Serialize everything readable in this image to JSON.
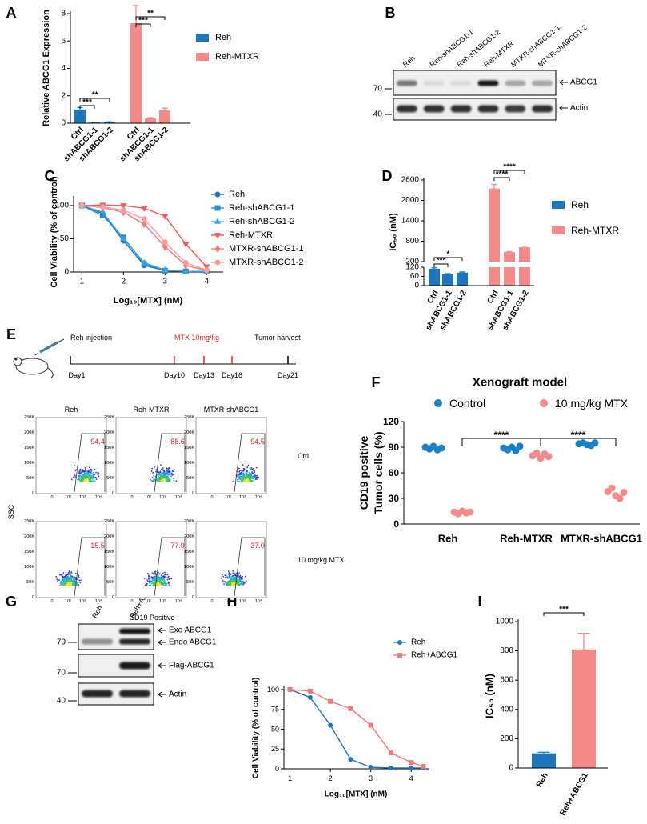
{
  "panel_labels": [
    "A",
    "B",
    "C",
    "D",
    "E",
    "F",
    "G",
    "H",
    "I"
  ],
  "chart_data": [
    {
      "type": "bar",
      "ylabel": "Relative ABCG1 Expression",
      "categories": [
        "Ctrl",
        "shABCG1-1",
        "shABCG1-2",
        "Ctrl",
        "shABCG1-1",
        "shABCG1-2"
      ],
      "series": [
        {
          "name": "Reh",
          "color": "#1d76bc",
          "values": [
            1.0,
            0.05,
            0.08,
            null,
            null,
            null
          ],
          "errors": [
            0.15,
            0.02,
            0.02,
            null,
            null,
            null
          ]
        },
        {
          "name": "Reh-MTXR",
          "color": "#f58a8a",
          "values": [
            null,
            null,
            null,
            7.3,
            0.35,
            0.95
          ],
          "errors": [
            null,
            null,
            null,
            1.3,
            0.06,
            0.15
          ]
        }
      ],
      "ylim": [
        0,
        8
      ],
      "yticks": [
        0,
        2,
        4,
        6,
        8
      ],
      "annotations": [
        "***",
        "**",
        "***",
        "**"
      ]
    },
    {
      "type": "line",
      "ylabel": "Cell Viability (% of control)",
      "xlabel": "Log₁₀[MTX] (nM)",
      "x": [
        1,
        1.5,
        2,
        2.5,
        3,
        3.5,
        4
      ],
      "xlim": [
        0.8,
        4.4
      ],
      "xticks": [
        1,
        2,
        3,
        4
      ],
      "ylim": [
        0,
        115
      ],
      "yticks": [
        0,
        50,
        100
      ],
      "series": [
        {
          "name": "Reh",
          "color": "#1f74c0",
          "marker": "circle",
          "values": [
            100,
            88,
            47,
            10,
            2,
            1,
            1
          ]
        },
        {
          "name": "Reh-shABCG1-1",
          "color": "#2a8ad6",
          "marker": "square",
          "values": [
            100,
            85,
            52,
            12,
            2,
            1,
            1
          ]
        },
        {
          "name": "Reh-shABCG1-2",
          "color": "#3aa0e0",
          "marker": "triangle-up",
          "values": [
            100,
            90,
            50,
            14,
            3,
            1,
            1
          ]
        },
        {
          "name": "Reh-MTXR",
          "color": "#ef5a5a",
          "marker": "triangle-down",
          "values": [
            100,
            101,
            100,
            96,
            84,
            42,
            8
          ]
        },
        {
          "name": "MTXR-shABCG1-1",
          "color": "#f27c7c",
          "marker": "diamond",
          "values": [
            100,
            97,
            90,
            72,
            38,
            10,
            2
          ]
        },
        {
          "name": "MTXR-shABCG1-2",
          "color": "#f5a0a0",
          "marker": "circle",
          "values": [
            100,
            98,
            93,
            80,
            45,
            14,
            3
          ]
        }
      ]
    },
    {
      "type": "bar",
      "ylabel": "IC₅₀ (nM)",
      "categories": [
        "Ctrl",
        "shABCG1-1",
        "shABCG1-2",
        "Ctrl",
        "shABCG1-1",
        "shABCG1-2"
      ],
      "series": [
        {
          "name": "Reh",
          "color": "#1d76bc",
          "values": [
            110,
            75,
            85,
            null,
            null,
            null
          ],
          "errors": [
            6,
            3,
            4,
            null,
            null,
            null
          ]
        },
        {
          "name": "Reh-MTXR",
          "color": "#f58a8a",
          "values": [
            null,
            null,
            null,
            2350,
            480,
            620
          ],
          "errors": [
            null,
            null,
            null,
            120,
            15,
            30
          ]
        }
      ],
      "ylim": [
        0,
        2600
      ],
      "yticks": [
        0,
        60,
        120,
        200,
        800,
        1400,
        2000,
        2600
      ],
      "axis_break": [
        120,
        200
      ],
      "annotations": [
        "***",
        "*",
        "****",
        "****"
      ]
    },
    {
      "type": "strip",
      "title": "Xenograft model",
      "ylabel": [
        "CD19 positive",
        "Tumor cells (%)"
      ],
      "categories": [
        "Reh",
        "Reh-MTXR",
        "MTXR-shABCG1"
      ],
      "ylim": [
        0,
        120
      ],
      "yticks": [
        0,
        30,
        60,
        90,
        120
      ],
      "series": [
        {
          "name": "Control",
          "color": "#1d7fc4",
          "values": [
            [
              90,
              88,
              91,
              87,
              89
            ],
            [
              89,
              87,
              90,
              86,
              91
            ],
            [
              94,
              95,
              93,
              92,
              95
            ]
          ]
        },
        {
          "name": "10 mg/kg MTX",
          "color": "#f58a8a",
          "values": [
            [
              14,
              12,
              15,
              13,
              14
            ],
            [
              80,
              83,
              77,
              82,
              79
            ],
            [
              38,
              42,
              33,
              30,
              37
            ]
          ]
        }
      ],
      "annotations": [
        "****",
        "****"
      ]
    },
    {
      "type": "line",
      "ylabel": "Cell Viability (% of control)",
      "xlabel": "Log₁₀[MTX] (nM)",
      "x": [
        1,
        1.5,
        2,
        2.5,
        3,
        3.5,
        4,
        4.3
      ],
      "xlim": [
        0.85,
        4.45
      ],
      "xticks": [
        1,
        2,
        3,
        4
      ],
      "ylim": [
        0,
        105
      ],
      "yticks": [
        0,
        25,
        50,
        75,
        100
      ],
      "series": [
        {
          "name": "Reh",
          "color": "#1f74c0",
          "marker": "circle",
          "values": [
            100,
            90,
            55,
            12,
            2,
            1,
            1,
            1
          ]
        },
        {
          "name": "Reh+ABCG1",
          "color": "#f07a7a",
          "marker": "square",
          "values": [
            100,
            98,
            85,
            76,
            55,
            20,
            8,
            3
          ]
        }
      ]
    },
    {
      "type": "bar",
      "ylabel": "IC₅₀ (nM)",
      "categories": [
        "Reh",
        "Reh+ABCG1"
      ],
      "values": [
        100,
        810
      ],
      "errors": [
        8,
        110
      ],
      "colors": [
        "#1d76bc",
        "#f58a8a"
      ],
      "ylim": [
        0,
        1000
      ],
      "yticks": [
        0,
        200,
        400,
        600,
        800,
        1000
      ],
      "annotations": [
        "***"
      ]
    }
  ],
  "blots": [
    {
      "lanes": [
        "Reh",
        "Reh-shABCG1-1",
        "Reh-shABCG1-2",
        "Reh-MTXR",
        "MTXR-shABCG1-1",
        "MTXR-shABCG1-2"
      ],
      "markers": [
        "70",
        "40"
      ],
      "bands": [
        "ABCG1",
        "Actin"
      ]
    },
    {
      "lanes": [
        "Reh",
        "Reh+ABCG1"
      ],
      "markers": [
        "70",
        "70",
        "40"
      ],
      "bands": [
        "Exo ABCG1",
        "Endo ABCG1",
        "Flag-ABCG1",
        "Actin"
      ]
    }
  ],
  "timeline": {
    "labels": [
      "Reh injection",
      "MTX 10mg/kg",
      "Tumor harvest"
    ],
    "days": [
      "Day1",
      "Day10",
      "Day13",
      "Day16",
      "Day21"
    ]
  },
  "flow": {
    "columns": [
      "Reh",
      "Reh-MTXR",
      "MTXR-shABCG1"
    ],
    "rows": [
      "Ctrl",
      "10 mg/kg MTX"
    ],
    "gates": [
      [
        "94.4",
        "88.6",
        "94.5"
      ],
      [
        "15.5",
        "77.9",
        "37.0"
      ]
    ],
    "yticks": [
      "250K",
      "200K",
      "150K",
      "100K",
      "50K",
      "0"
    ],
    "xticks": [
      "0",
      "10²",
      "10³",
      "10⁴"
    ],
    "ylabel": "SSC",
    "xlabel": "CD19 Positive"
  }
}
